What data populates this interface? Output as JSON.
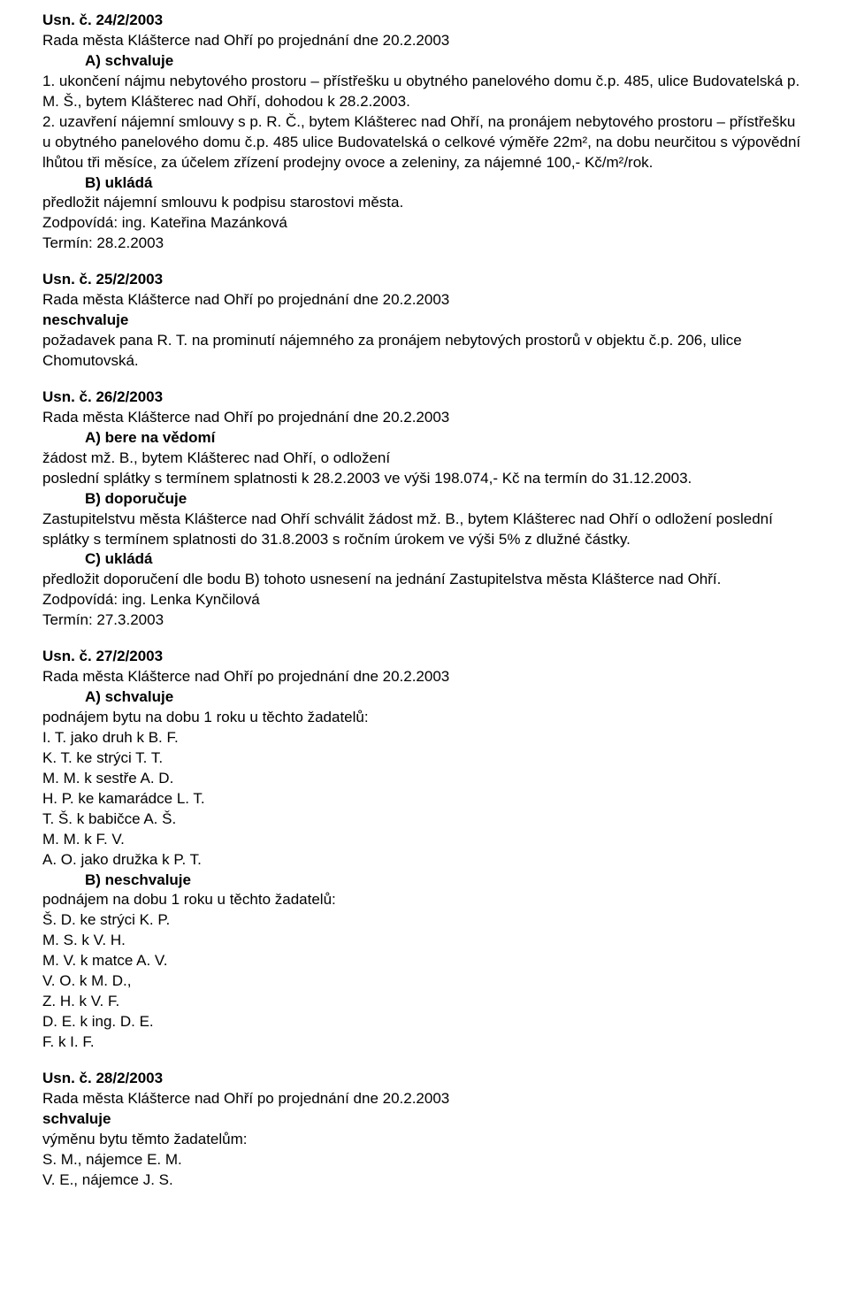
{
  "sections": [
    {
      "lines": [
        {
          "text": "Usn. č. 24/2/2003",
          "bold": true
        },
        {
          "text": "Rada města Klášterce nad Ohří po projednání dne 20.2.2003"
        },
        {
          "text": "A) schvaluje",
          "bold": true,
          "indent": true
        },
        {
          "text": "1. ukončení nájmu nebytového prostoru – přístřešku u obytného panelového domu č.p. 485, ulice Budovatelská p. M. Š., bytem Klášterec nad Ohří, dohodou k 28.2.2003."
        },
        {
          "text": "2. uzavření nájemní smlouvy s p. R. Č., bytem Klášterec nad Ohří, na pronájem nebytového prostoru – přístřešku u obytného panelového domu č.p. 485 ulice Budovatelská o celkové výměře 22m², na dobu neurčitou s výpovědní lhůtou tři měsíce, za účelem zřízení prodejny ovoce a zeleniny, za nájemné 100,- Kč/m²/rok."
        },
        {
          "text": "B) ukládá",
          "bold": true,
          "indent": true
        },
        {
          "text": "předložit nájemní smlouvu k podpisu starostovi města."
        },
        {
          "text": "Zodpovídá: ing. Kateřina Mazánková"
        },
        {
          "text": "Termín: 28.2.2003"
        }
      ]
    },
    {
      "lines": [
        {
          "text": "Usn. č. 25/2/2003",
          "bold": true
        },
        {
          "text": "Rada města Klášterce nad Ohří po projednání dne 20.2.2003"
        },
        {
          "text": "neschvaluje",
          "bold": true
        },
        {
          "text": "požadavek pana R. T. na prominutí nájemného za pronájem nebytových prostorů v objektu č.p. 206, ulice Chomutovská."
        }
      ]
    },
    {
      "lines": [
        {
          "text": "Usn. č. 26/2/2003",
          "bold": true
        },
        {
          "text": "Rada města Klášterce nad Ohří po projednání dne 20.2.2003"
        },
        {
          "text": "A) bere na vědomí",
          "bold": true,
          "indent": true
        },
        {
          "text": "žádost mž. B., bytem Klášterec nad Ohří, o odložení"
        },
        {
          "text": "poslední splátky s termínem splatnosti k 28.2.2003 ve výši 198.074,- Kč na termín do  31.12.2003."
        },
        {
          "text": "B) doporučuje",
          "bold": true,
          "indent": true
        },
        {
          "text": "Zastupitelstvu města Klášterce nad Ohří schválit žádost mž. B., bytem Klášterec nad Ohří o odložení poslední splátky s termínem splatnosti do 31.8.2003 s ročním úrokem ve výši 5% z dlužné částky."
        },
        {
          "text": "C) ukládá",
          "bold": true,
          "indent": true
        },
        {
          "text": "předložit doporučení dle bodu B) tohoto usnesení na jednání Zastupitelstva města Klášterce nad Ohří."
        },
        {
          "text": "Zodpovídá: ing. Lenka Kynčilová"
        },
        {
          "text": "Termín: 27.3.2003"
        }
      ]
    },
    {
      "lines": [
        {
          "text": "Usn. č. 27/2/2003",
          "bold": true
        },
        {
          "text": "Rada města Klášterce nad Ohří po projednání dne 20.2.2003"
        },
        {
          "text": "A) schvaluje",
          "bold": true,
          "indent": true
        },
        {
          "text": "podnájem bytu na dobu 1 roku u těchto žadatelů:"
        },
        {
          "text": "I. T. jako druh k B. F."
        },
        {
          "text": "K. T. ke strýci T. T."
        },
        {
          "text": "M. M. k sestře A. D."
        },
        {
          "text": "H. P. ke kamarádce L. T."
        },
        {
          "text": "T. Š. k babičce A. Š."
        },
        {
          "text": "M. M. k F. V."
        },
        {
          "text": "A. O. jako družka k P. T."
        },
        {
          "text": "B) neschvaluje",
          "bold": true,
          "indent": true
        },
        {
          "text": "podnájem na dobu 1 roku u těchto žadatelů:"
        },
        {
          "text": "Š. D. ke strýci K. P."
        },
        {
          "text": "M. S. k V. H."
        },
        {
          "text": "M. V. k matce A. V."
        },
        {
          "text": "V. O. k  M. D.,"
        },
        {
          "text": "Z. H. k V. F."
        },
        {
          "text": "D. E. k ing. D. E."
        },
        {
          "text": "F. k  I. F."
        }
      ]
    },
    {
      "lines": [
        {
          "text": "Usn. č. 28/2/2003",
          "bold": true
        },
        {
          "text": "Rada města Klášterce nad Ohří po projednání dne  20.2.2003"
        },
        {
          "text": "schvaluje",
          "bold": true
        },
        {
          "text": "výměnu bytu těmto žadatelům:"
        },
        {
          "text": "S. M., nájemce E. M."
        },
        {
          "text": "V. E., nájemce J. S."
        }
      ]
    }
  ]
}
